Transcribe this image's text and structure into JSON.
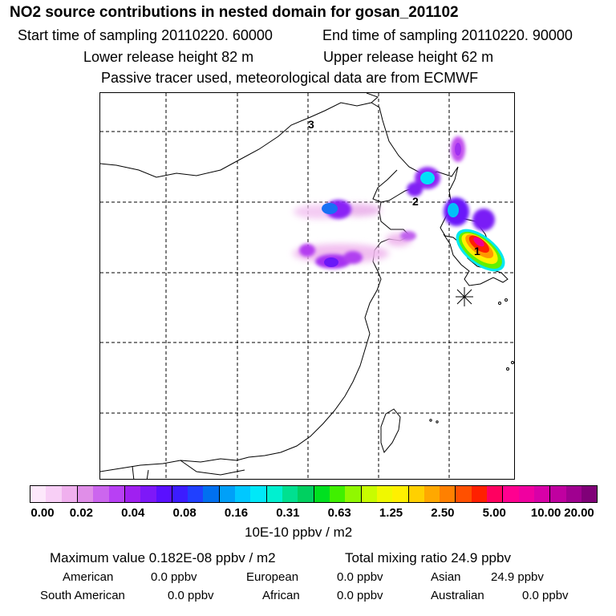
{
  "header": {
    "title": "NO2 source contributions in nested domain for gosan_201102",
    "start_time": "Start time of sampling 20110220. 60000",
    "end_time": "End time of sampling 20110220. 90000",
    "lower_release": "Lower release height   82 m",
    "upper_release": "Upper release height   62 m",
    "tracer_note": "Passive tracer used, meteorological data are from ECMWF"
  },
  "map": {
    "region_labels": [
      "1",
      "2",
      "3"
    ]
  },
  "colorbar": {
    "ticks": [
      "0.00",
      "0.02",
      "0.04",
      "0.08",
      "0.16",
      "0.31",
      "0.63",
      "1.25",
      "2.50",
      "5.00",
      "10.00",
      "20.00"
    ],
    "units": "10E-10 ppbv / m2",
    "colors": [
      "#fde8fb",
      "#f8cff6",
      "#f0b0ee",
      "#e08ee8",
      "#cc66ee",
      "#b840f4",
      "#a020f0",
      "#7e18f8",
      "#5a10ff",
      "#3c1cff",
      "#2040ff",
      "#0070f0",
      "#00a0f8",
      "#00c8ff",
      "#00e8f8",
      "#00f0d0",
      "#00e090",
      "#00d060",
      "#00e020",
      "#40f000",
      "#90f800",
      "#c8fc00",
      "#f0f800",
      "#fff000",
      "#ffd000",
      "#ffa800",
      "#ff8000",
      "#ff5000",
      "#ff2000",
      "#ff0060",
      "#ff0090",
      "#f000a0",
      "#d800a8",
      "#c000a0",
      "#a00090",
      "#800078"
    ]
  },
  "summary": {
    "max_value": "Maximum value  0.182E-08 ppbv / m2",
    "total_mixing": "Total mixing ratio       24.9 ppbv",
    "american_label": "American",
    "american_value": "0.0 ppbv",
    "european_label": "European",
    "european_value": "0.0 ppbv",
    "asian_label": "Asian",
    "asian_value": "24.9 ppbv",
    "south_american_label": "South American",
    "south_american_value": "0.0 ppbv",
    "african_label": "African",
    "african_value": "0.0 ppbv",
    "australian_label": "Australian",
    "australian_value": "0.0 ppbv"
  }
}
